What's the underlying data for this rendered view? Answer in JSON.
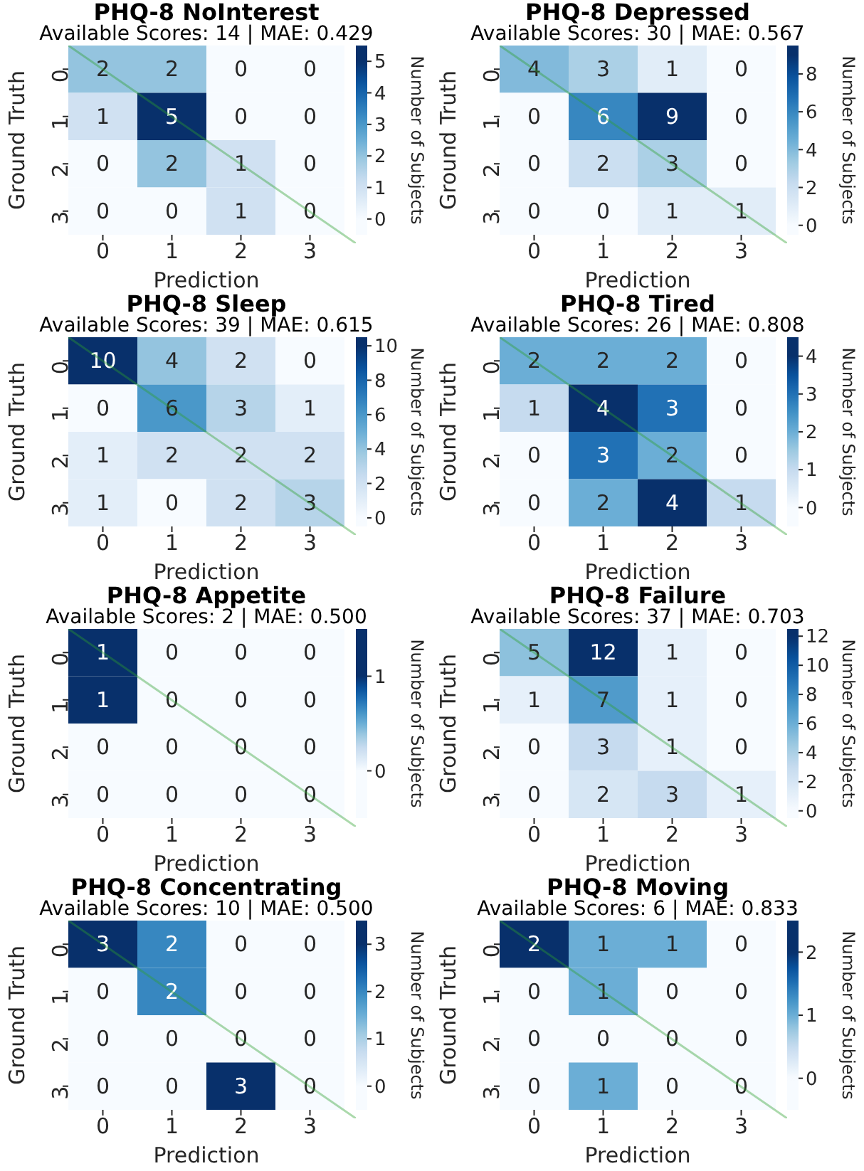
{
  "chart_data": [
    {
      "type": "heatmap",
      "title": "PHQ-8 NoInterest",
      "subtitle": "Available Scores: 14 | MAE: 0.429",
      "xlabel": "Prediction",
      "ylabel": "Ground Truth",
      "clabel": "Number of Subjects",
      "categories": [
        "0",
        "1",
        "2",
        "3"
      ],
      "y_categories": [
        "0",
        "1",
        "2",
        "3"
      ],
      "cells": [
        [
          2,
          2,
          0,
          0
        ],
        [
          1,
          5,
          0,
          0
        ],
        [
          0,
          2,
          1,
          0
        ],
        [
          0,
          0,
          1,
          0
        ]
      ],
      "clim": [
        -0.5,
        5.5
      ],
      "cticks": [
        0,
        1,
        2,
        3,
        4,
        5
      ],
      "data_labels": true
    },
    {
      "type": "heatmap",
      "title": "PHQ-8 Depressed",
      "subtitle": "Available Scores: 30 | MAE: 0.567",
      "xlabel": "Prediction",
      "ylabel": "Ground Truth",
      "clabel": "Number of Subjects",
      "categories": [
        "0",
        "1",
        "2",
        "3"
      ],
      "y_categories": [
        "0",
        "1",
        "2",
        "3"
      ],
      "cells": [
        [
          4,
          3,
          1,
          0
        ],
        [
          0,
          6,
          9,
          0
        ],
        [
          0,
          2,
          3,
          0
        ],
        [
          0,
          0,
          1,
          1
        ]
      ],
      "clim": [
        -0.5,
        9.5
      ],
      "cticks": [
        0,
        2,
        4,
        6,
        8
      ],
      "data_labels": true
    },
    {
      "type": "heatmap",
      "title": "PHQ-8 Sleep",
      "subtitle": "Available Scores: 39 | MAE: 0.615",
      "xlabel": "Prediction",
      "ylabel": "Ground Truth",
      "clabel": "Number of Subjects",
      "categories": [
        "0",
        "1",
        "2",
        "3"
      ],
      "y_categories": [
        "0",
        "1",
        "2",
        "3"
      ],
      "cells": [
        [
          10,
          4,
          2,
          0
        ],
        [
          0,
          6,
          3,
          1
        ],
        [
          1,
          2,
          2,
          2
        ],
        [
          1,
          0,
          2,
          3
        ]
      ],
      "clim": [
        -0.5,
        10.5
      ],
      "cticks": [
        0,
        2,
        4,
        6,
        8,
        10
      ],
      "data_labels": true
    },
    {
      "type": "heatmap",
      "title": "PHQ-8 Tired",
      "subtitle": "Available Scores: 26 | MAE: 0.808",
      "xlabel": "Prediction",
      "ylabel": "Ground Truth",
      "clabel": "Number of Subjects",
      "categories": [
        "0",
        "1",
        "2",
        "3"
      ],
      "y_categories": [
        "0",
        "1",
        "2",
        "3"
      ],
      "cells": [
        [
          2,
          2,
          2,
          0
        ],
        [
          1,
          4,
          3,
          0
        ],
        [
          0,
          3,
          2,
          0
        ],
        [
          0,
          2,
          4,
          1
        ]
      ],
      "clim": [
        -0.5,
        4.5
      ],
      "cticks": [
        0,
        1,
        2,
        3,
        4
      ],
      "data_labels": true
    },
    {
      "type": "heatmap",
      "title": "PHQ-8 Appetite",
      "subtitle": "Available Scores: 2 | MAE: 0.500",
      "xlabel": "Prediction",
      "ylabel": "Ground Truth",
      "clabel": "Number of Subjects",
      "categories": [
        "0",
        "1",
        "2",
        "3"
      ],
      "y_categories": [
        "0",
        "1",
        "2",
        "3"
      ],
      "cells": [
        [
          1,
          0,
          0,
          0
        ],
        [
          1,
          0,
          0,
          0
        ],
        [
          0,
          0,
          0,
          0
        ],
        [
          0,
          0,
          0,
          0
        ]
      ],
      "clim": [
        -0.5,
        1.5
      ],
      "cticks": [
        0,
        1
      ],
      "data_labels": true
    },
    {
      "type": "heatmap",
      "title": "PHQ-8 Failure",
      "subtitle": "Available Scores: 37 | MAE: 0.703",
      "xlabel": "Prediction",
      "ylabel": "Ground Truth",
      "clabel": "Number of Subjects",
      "categories": [
        "0",
        "1",
        "2",
        "3"
      ],
      "y_categories": [
        "0",
        "1",
        "2",
        "3"
      ],
      "cells": [
        [
          5,
          12,
          1,
          0
        ],
        [
          1,
          7,
          1,
          0
        ],
        [
          0,
          3,
          1,
          0
        ],
        [
          0,
          2,
          3,
          1
        ]
      ],
      "clim": [
        -0.5,
        12.5
      ],
      "cticks": [
        0,
        2,
        4,
        6,
        8,
        10,
        12
      ],
      "data_labels": true
    },
    {
      "type": "heatmap",
      "title": "PHQ-8 Concentrating",
      "subtitle": "Available Scores: 10 | MAE: 0.500",
      "xlabel": "Prediction",
      "ylabel": "Ground Truth",
      "clabel": "Number of Subjects",
      "categories": [
        "0",
        "1",
        "2",
        "3"
      ],
      "y_categories": [
        "0",
        "1",
        "2",
        "3"
      ],
      "cells": [
        [
          3,
          2,
          0,
          0
        ],
        [
          0,
          2,
          0,
          0
        ],
        [
          0,
          0,
          0,
          0
        ],
        [
          0,
          0,
          3,
          0
        ]
      ],
      "clim": [
        -0.5,
        3.5
      ],
      "cticks": [
        0,
        1,
        2,
        3
      ],
      "data_labels": true
    },
    {
      "type": "heatmap",
      "title": "PHQ-8 Moving",
      "subtitle": "Available Scores: 6 | MAE: 0.833",
      "xlabel": "Prediction",
      "ylabel": "Ground Truth",
      "clabel": "Number of Subjects",
      "categories": [
        "0",
        "1",
        "2",
        "3"
      ],
      "y_categories": [
        "0",
        "1",
        "2",
        "3"
      ],
      "cells": [
        [
          2,
          1,
          1,
          0
        ],
        [
          0,
          1,
          0,
          0
        ],
        [
          0,
          0,
          0,
          0
        ],
        [
          0,
          1,
          0,
          0
        ]
      ],
      "clim": [
        -0.5,
        2.5
      ],
      "cticks": [
        0,
        1,
        2
      ],
      "data_labels": true
    }
  ]
}
